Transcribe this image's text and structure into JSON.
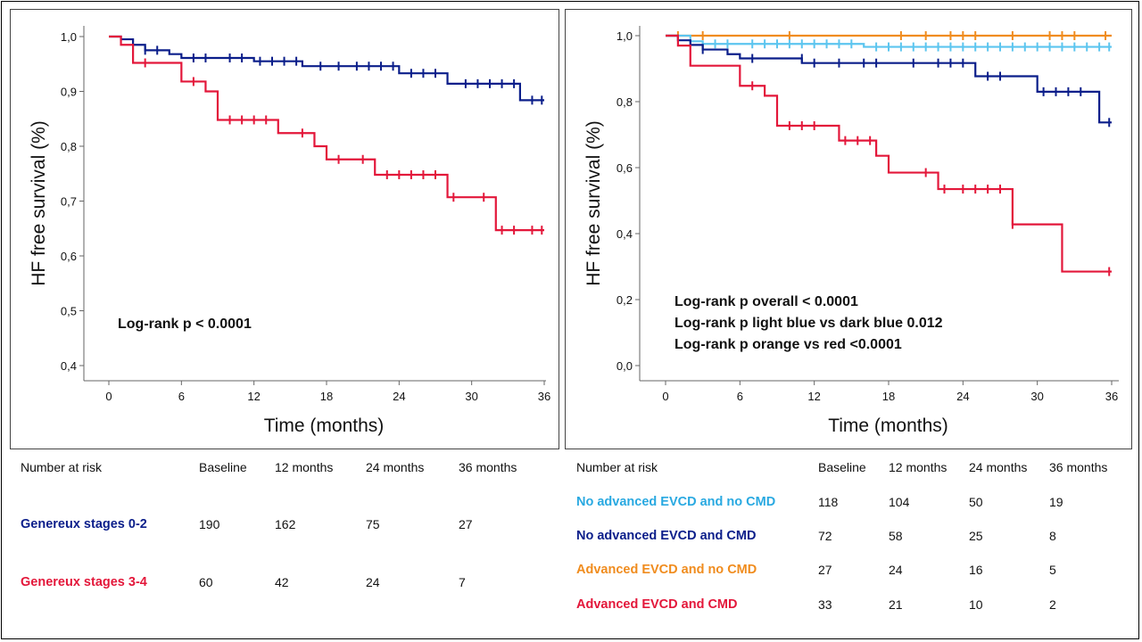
{
  "chart_data": [
    {
      "type": "line",
      "subtype": "kaplan-meier",
      "title": "",
      "xlabel": "Time (months)",
      "ylabel": "HF free survival (%)",
      "xlim": [
        0,
        36
      ],
      "ylim": [
        0.4,
        1.0
      ],
      "xticks": [
        "0",
        "6",
        "12",
        "18",
        "24",
        "30",
        "36"
      ],
      "yticks": [
        "1,0",
        "0,9",
        "0,8",
        "0,7",
        "0,6",
        "0,5",
        "0,4"
      ],
      "annotations": [
        "Log-rank p < 0.0001"
      ],
      "series": [
        {
          "name": "Genereux stages 0-2",
          "color": "#0b1e8a",
          "steps": [
            [
              0,
              1.0
            ],
            [
              1,
              0.995
            ],
            [
              2,
              0.985
            ],
            [
              3,
              0.975
            ],
            [
              5,
              0.968
            ],
            [
              6,
              0.961
            ],
            [
              12,
              0.955
            ],
            [
              16,
              0.946
            ],
            [
              24,
              0.933
            ],
            [
              28,
              0.914
            ],
            [
              34,
              0.884
            ],
            [
              36,
              0.884
            ]
          ],
          "censors": [
            [
              3,
              0.975
            ],
            [
              4,
              0.975
            ],
            [
              7,
              0.961
            ],
            [
              8,
              0.961
            ],
            [
              10,
              0.961
            ],
            [
              11,
              0.961
            ],
            [
              12.5,
              0.955
            ],
            [
              13.5,
              0.955
            ],
            [
              14.5,
              0.955
            ],
            [
              15.5,
              0.955
            ],
            [
              17.5,
              0.946
            ],
            [
              19,
              0.946
            ],
            [
              20.5,
              0.946
            ],
            [
              21.5,
              0.946
            ],
            [
              22.5,
              0.946
            ],
            [
              23.5,
              0.946
            ],
            [
              25,
              0.933
            ],
            [
              26,
              0.933
            ],
            [
              27,
              0.933
            ],
            [
              29.5,
              0.914
            ],
            [
              30.5,
              0.914
            ],
            [
              31.5,
              0.914
            ],
            [
              32.5,
              0.914
            ],
            [
              33.5,
              0.914
            ],
            [
              35,
              0.884
            ],
            [
              35.8,
              0.884
            ]
          ]
        },
        {
          "name": "Genereux stages 3-4",
          "color": "#e3173a",
          "steps": [
            [
              0,
              1.0
            ],
            [
              1,
              0.985
            ],
            [
              2,
              0.952
            ],
            [
              6,
              0.918
            ],
            [
              8,
              0.9
            ],
            [
              9,
              0.848
            ],
            [
              14,
              0.824
            ],
            [
              17,
              0.8
            ],
            [
              18,
              0.776
            ],
            [
              22,
              0.748
            ],
            [
              28,
              0.707
            ],
            [
              32,
              0.647
            ],
            [
              36,
              0.647
            ]
          ],
          "censors": [
            [
              3,
              0.952
            ],
            [
              7,
              0.918
            ],
            [
              10,
              0.848
            ],
            [
              11,
              0.848
            ],
            [
              12,
              0.848
            ],
            [
              13,
              0.848
            ],
            [
              16,
              0.824
            ],
            [
              19,
              0.776
            ],
            [
              21,
              0.776
            ],
            [
              23,
              0.748
            ],
            [
              24,
              0.748
            ],
            [
              25,
              0.748
            ],
            [
              26,
              0.748
            ],
            [
              27,
              0.748
            ],
            [
              28.5,
              0.707
            ],
            [
              31,
              0.707
            ],
            [
              32.5,
              0.647
            ],
            [
              33.5,
              0.647
            ],
            [
              35,
              0.647
            ],
            [
              35.8,
              0.647
            ]
          ]
        }
      ]
    },
    {
      "type": "line",
      "subtype": "kaplan-meier",
      "title": "",
      "xlabel": "Time (months)",
      "ylabel": "HF free survival (%)",
      "xlim": [
        0,
        36
      ],
      "ylim": [
        0.0,
        1.0
      ],
      "xticks": [
        "0",
        "6",
        "12",
        "18",
        "24",
        "30",
        "36"
      ],
      "yticks": [
        "1,0",
        "0,8",
        "0,6",
        "0,4",
        "0,2",
        "0,0"
      ],
      "annotations": [
        "Log-rank p overall < 0.0001",
        "Log-rank p light blue vs dark blue 0.012",
        "Log-rank p orange vs red <0.0001"
      ],
      "series": [
        {
          "name": "Advanced EVCD and no CMD",
          "color": "#f08c1e",
          "steps": [
            [
              0,
              1.0
            ],
            [
              36,
              1.0
            ]
          ],
          "censors": [
            [
              1,
              1.0
            ],
            [
              3,
              1.0
            ],
            [
              10,
              1.0
            ],
            [
              19,
              1.0
            ],
            [
              21,
              1.0
            ],
            [
              23,
              1.0
            ],
            [
              24,
              1.0
            ],
            [
              25,
              1.0
            ],
            [
              28,
              1.0
            ],
            [
              31,
              1.0
            ],
            [
              32,
              1.0
            ],
            [
              33,
              1.0
            ],
            [
              35.5,
              1.0
            ]
          ]
        },
        {
          "name": "No advanced EVCD and no CMD",
          "color": "#5cc5ef",
          "steps": [
            [
              0,
              1.0
            ],
            [
              2,
              0.983
            ],
            [
              3,
              0.975
            ],
            [
              16,
              0.966
            ],
            [
              36,
              0.966
            ]
          ],
          "censors": [
            [
              4,
              0.975
            ],
            [
              5,
              0.975
            ],
            [
              7,
              0.975
            ],
            [
              8,
              0.975
            ],
            [
              9,
              0.975
            ],
            [
              10,
              0.975
            ],
            [
              11,
              0.975
            ],
            [
              12,
              0.975
            ],
            [
              13,
              0.975
            ],
            [
              14,
              0.975
            ],
            [
              15,
              0.975
            ],
            [
              17,
              0.966
            ],
            [
              18,
              0.966
            ],
            [
              19,
              0.966
            ],
            [
              20,
              0.966
            ],
            [
              21,
              0.966
            ],
            [
              22,
              0.966
            ],
            [
              23,
              0.966
            ],
            [
              24,
              0.966
            ],
            [
              25,
              0.966
            ],
            [
              26,
              0.966
            ],
            [
              27,
              0.966
            ],
            [
              28,
              0.966
            ],
            [
              29,
              0.966
            ],
            [
              30,
              0.966
            ],
            [
              31,
              0.966
            ],
            [
              32,
              0.966
            ],
            [
              33,
              0.966
            ],
            [
              34,
              0.966
            ],
            [
              35,
              0.966
            ],
            [
              35.8,
              0.966
            ]
          ]
        },
        {
          "name": "No advanced EVCD and CMD",
          "color": "#0b1e8a",
          "steps": [
            [
              0,
              1.0
            ],
            [
              1,
              0.986
            ],
            [
              2,
              0.972
            ],
            [
              3,
              0.958
            ],
            [
              5,
              0.944
            ],
            [
              6,
              0.931
            ],
            [
              11,
              0.917
            ],
            [
              25,
              0.877
            ],
            [
              30,
              0.83
            ],
            [
              35,
              0.737
            ],
            [
              36,
              0.737
            ]
          ],
          "censors": [
            [
              3,
              0.958
            ],
            [
              7,
              0.931
            ],
            [
              11,
              0.931
            ],
            [
              12,
              0.917
            ],
            [
              14,
              0.917
            ],
            [
              16,
              0.917
            ],
            [
              17,
              0.917
            ],
            [
              20,
              0.917
            ],
            [
              22,
              0.917
            ],
            [
              23,
              0.917
            ],
            [
              24,
              0.917
            ],
            [
              26,
              0.877
            ],
            [
              27,
              0.877
            ],
            [
              30.5,
              0.83
            ],
            [
              31.5,
              0.83
            ],
            [
              32.5,
              0.83
            ],
            [
              33.5,
              0.83
            ],
            [
              35.8,
              0.737
            ]
          ]
        },
        {
          "name": "Advanced EVCD and CMD",
          "color": "#e3173a",
          "steps": [
            [
              0,
              1.0
            ],
            [
              1,
              0.97
            ],
            [
              2,
              0.909
            ],
            [
              6,
              0.848
            ],
            [
              8,
              0.818
            ],
            [
              9,
              0.727
            ],
            [
              14,
              0.682
            ],
            [
              17,
              0.636
            ],
            [
              18,
              0.585
            ],
            [
              22,
              0.535
            ],
            [
              28,
              0.428
            ],
            [
              32,
              0.285
            ],
            [
              36,
              0.285
            ]
          ],
          "censors": [
            [
              7,
              0.848
            ],
            [
              10,
              0.727
            ],
            [
              11,
              0.727
            ],
            [
              12,
              0.727
            ],
            [
              14.5,
              0.682
            ],
            [
              15.5,
              0.682
            ],
            [
              16.5,
              0.682
            ],
            [
              21,
              0.585
            ],
            [
              22.5,
              0.535
            ],
            [
              24,
              0.535
            ],
            [
              25,
              0.535
            ],
            [
              26,
              0.535
            ],
            [
              27,
              0.535
            ],
            [
              28,
              0.428
            ],
            [
              35.8,
              0.285
            ]
          ]
        }
      ]
    }
  ],
  "risk_tables": [
    {
      "header": [
        "Number at risk",
        "Baseline",
        "12 months",
        "24 months",
        "36 months"
      ],
      "rows": [
        {
          "label": "Genereux stages 0-2",
          "color": "#0b1e8a",
          "values": [
            "190",
            "162",
            "75",
            "27"
          ]
        },
        {
          "label": "Genereux stages 3-4",
          "color": "#e3173a",
          "values": [
            "60",
            "42",
            "24",
            "7"
          ]
        }
      ]
    },
    {
      "header": [
        "Number at risk",
        "Baseline",
        "12 months",
        "24 months",
        "36 months"
      ],
      "rows": [
        {
          "label": "No advanced EVCD and no CMD",
          "color": "#29a9e1",
          "values": [
            "118",
            "104",
            "50",
            "19"
          ]
        },
        {
          "label": "No advanced EVCD and CMD",
          "color": "#0b1e8a",
          "values": [
            "72",
            "58",
            "25",
            "8"
          ]
        },
        {
          "label": "Advanced EVCD and no CMD",
          "color": "#f08c1e",
          "values": [
            "27",
            "24",
            "16",
            "5"
          ]
        },
        {
          "label": "Advanced EVCD and CMD",
          "color": "#e3173a",
          "values": [
            "33",
            "21",
            "10",
            "2"
          ]
        }
      ]
    }
  ]
}
